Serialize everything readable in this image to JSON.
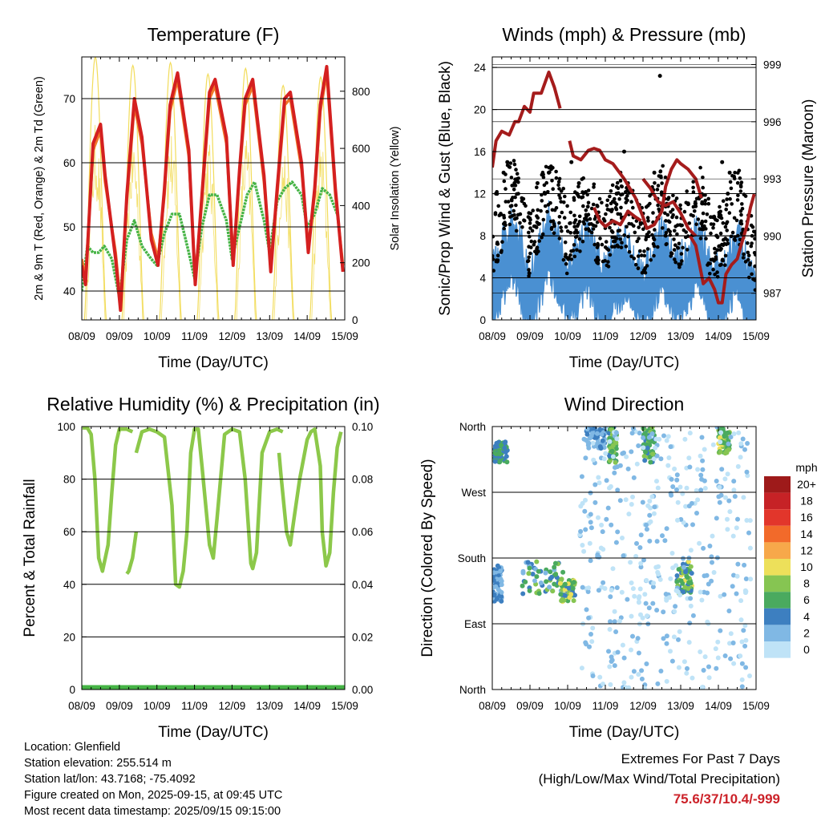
{
  "chart_data": [
    {
      "type": "line",
      "title": "Temperature (F)",
      "xlabel": "Time (Day/UTC)",
      "ylabel": "2m & 9m T (Red, Orange) & 2m Td (Green)",
      "y2label": "Solar Insolation (Yellow)",
      "x_ticks": [
        "08/09",
        "09/09",
        "10/09",
        "11/09",
        "12/09",
        "13/09",
        "14/09",
        "15/09"
      ],
      "ylim": [
        35.5,
        76.5
      ],
      "y_ticks": [
        40,
        50,
        60,
        70
      ],
      "y2lim": [
        0,
        920
      ],
      "y2_ticks": [
        0,
        200,
        400,
        600,
        800
      ],
      "grid": "horizontal",
      "series": [
        {
          "name": "2m T",
          "color": "#d42020",
          "x": [
            0,
            0.1,
            0.3,
            0.5,
            0.62,
            0.9,
            1.03,
            1.2,
            1.4,
            1.6,
            1.85,
            2.03,
            2.2,
            2.35,
            2.55,
            2.85,
            3.02,
            3.2,
            3.4,
            3.55,
            3.85,
            4.03,
            4.2,
            4.35,
            4.55,
            4.85,
            5.03,
            5.2,
            5.4,
            5.55,
            5.85,
            6.03,
            6.2,
            6.35,
            6.52,
            6.75,
            6.95
          ],
          "values": [
            44,
            41,
            63,
            66,
            58,
            45,
            37,
            55,
            70,
            64,
            48,
            44,
            56,
            69,
            74,
            62,
            41,
            55,
            71,
            73,
            64,
            44,
            59,
            70,
            73,
            58,
            43,
            56,
            70,
            71,
            60,
            46,
            56,
            69,
            75,
            56,
            43
          ]
        },
        {
          "name": "9m T",
          "color": "#f07828",
          "x": [
            0,
            0.1,
            0.3,
            0.5,
            0.62,
            0.9,
            1.03,
            1.2,
            1.4,
            1.6,
            1.85,
            2.03,
            2.2,
            2.35,
            2.55,
            2.85,
            3.02,
            3.2,
            3.4,
            3.55,
            3.85,
            4.03,
            4.2,
            4.35,
            4.55,
            4.85,
            5.03,
            5.2,
            5.4,
            5.55,
            5.85,
            6.03,
            6.2,
            6.35,
            6.52,
            6.75,
            6.95
          ],
          "values": [
            45,
            42,
            62,
            65,
            57,
            46,
            38,
            54,
            69,
            63,
            49,
            45,
            55,
            68,
            73,
            61,
            42,
            54,
            70,
            72,
            63,
            45,
            58,
            69,
            72,
            57,
            44,
            55,
            69,
            70,
            59,
            47,
            55,
            68,
            74,
            55,
            44
          ]
        },
        {
          "name": "2m Td",
          "color": "#46b446",
          "x": [
            0,
            0.15,
            0.3,
            0.45,
            0.6,
            0.8,
            1.0,
            1.2,
            1.4,
            1.6,
            1.85,
            2.0,
            2.2,
            2.4,
            2.6,
            2.85,
            3.0,
            3.2,
            3.4,
            3.6,
            3.85,
            4.0,
            4.2,
            4.4,
            4.6,
            4.85,
            5.0,
            5.2,
            5.4,
            5.6,
            5.85,
            6.0,
            6.2,
            6.4,
            6.6,
            6.8
          ],
          "values": [
            40,
            47,
            46,
            46,
            47,
            45,
            39,
            48,
            51,
            47,
            45,
            44,
            49,
            52,
            52,
            46,
            42,
            50,
            55,
            55,
            51,
            45,
            50,
            55,
            57,
            51,
            46,
            54,
            56,
            57,
            55,
            50,
            52,
            56,
            55,
            52
          ]
        },
        {
          "name": "Solar Insolation",
          "color": "#f2dc5a",
          "axis": "y2",
          "days": [
            0,
            1,
            2,
            3,
            4,
            5,
            6
          ],
          "peaks": [
            920,
            890,
            900,
            860,
            880,
            820,
            850
          ]
        }
      ]
    },
    {
      "type": "scatter",
      "title": "Winds (mph) & Pressure (mb)",
      "xlabel": "Time (Day/UTC)",
      "ylabel": "Sonic/Prop Wind & Gust (Blue, Black)",
      "y2label": "Station Pressure (Maroon)",
      "x_ticks": [
        "08/09",
        "09/09",
        "10/09",
        "11/09",
        "12/09",
        "13/09",
        "14/09",
        "15/09"
      ],
      "ylim": [
        0,
        25
      ],
      "y_ticks": [
        0,
        4,
        8,
        12,
        16,
        20,
        24
      ],
      "y2lim": [
        985.6,
        999.4
      ],
      "y2_ticks": [
        987,
        990,
        993,
        996,
        999
      ],
      "grid": "horizontal",
      "series": [
        {
          "name": "Sonic/Prop Wind",
          "color": "#4a90d2",
          "type": "area",
          "x": [
            0,
            0.3,
            0.5,
            0.8,
            1.0,
            1.2,
            1.5,
            1.8,
            2.0,
            2.3,
            2.5,
            2.8,
            3.0,
            3.2,
            3.5,
            3.8,
            4.0,
            4.3,
            4.5,
            4.8,
            5.0,
            5.3,
            5.5,
            5.8,
            6.0,
            6.3,
            6.5,
            6.8,
            7.0
          ],
          "values": [
            3,
            6,
            8,
            5,
            2,
            5,
            8,
            6,
            3,
            5,
            7,
            4,
            3,
            5,
            6,
            4,
            3,
            5,
            7,
            4,
            4,
            6,
            7,
            3,
            3,
            5,
            7,
            3,
            1
          ]
        },
        {
          "name": "Gust",
          "color": "#000000",
          "type": "scatter",
          "x": [
            0.1,
            0.3,
            0.4,
            1.2,
            1.4,
            1.5,
            2.1,
            2.25,
            2.3,
            3.3,
            3.4,
            3.6,
            4.25,
            4.3,
            4.45,
            4.6,
            5.2,
            5.3,
            6.1,
            6.25,
            6.3,
            5.95,
            3.5
          ],
          "values": [
            12,
            14,
            15,
            13,
            12,
            14,
            15,
            12,
            13,
            12,
            14,
            13,
            12,
            14,
            23.2,
            8,
            11,
            8,
            15,
            12,
            14,
            8,
            16
          ]
        },
        {
          "name": "Station Pressure",
          "color": "#a51c1c",
          "axis": "y2",
          "segments": [
            {
              "x": [
                0,
                0.1,
                0.25,
                0.45,
                0.6,
                0.7,
                0.85,
                1.0,
                1.1,
                1.3,
                1.5,
                1.65,
                1.8
              ],
              "values": [
                993.6,
                995.0,
                995.5,
                995.3,
                996.0,
                996.0,
                996.8,
                996.5,
                997.5,
                997.5,
                998.6,
                997.8,
                996.7
              ]
            },
            {
              "x": [
                2.05,
                2.15,
                2.35,
                2.55,
                2.7,
                2.85,
                3.0,
                3.2,
                3.5,
                3.8,
                4.0,
                4.1,
                4.3,
                4.5,
                4.6,
                4.75,
                4.9,
                5.0,
                5.2,
                5.4,
                5.55
              ],
              "values": [
                995.0,
                994.2,
                994.0,
                994.5,
                994.6,
                994.5,
                994.0,
                993.8,
                993.0,
                992.0,
                991.0,
                990.4,
                990.6,
                991.3,
                992.6,
                993.5,
                994.0,
                993.8,
                993.5,
                993.0,
                992.0
              ]
            },
            {
              "x": [
                2.7,
                2.85,
                3.0,
                3.2,
                3.4,
                3.6,
                3.8,
                3.95
              ],
              "values": [
                991.5,
                990.8,
                990.5,
                990.8,
                990.6,
                991.3,
                991.0,
                990.8
              ]
            },
            {
              "x": [
                4.0,
                4.2,
                4.4,
                4.6,
                4.8,
                5.0,
                5.2,
                5.4
              ],
              "values": [
                993.0,
                992.5,
                991.8,
                991.6,
                991.8,
                991.2,
                990.4,
                990.0
              ]
            },
            {
              "x": [
                5.25,
                5.4,
                5.5,
                5.6,
                5.75,
                5.9,
                6.0,
                6.1,
                6.2,
                6.35,
                6.5,
                6.6,
                6.75,
                6.85,
                6.95
              ],
              "values": [
                990.0,
                989.5,
                988.5,
                987.5,
                987.8,
                987.2,
                986.5,
                986.5,
                988.0,
                988.5,
                988.8,
                989.5,
                990.5,
                991.5,
                992.2
              ]
            }
          ]
        }
      ]
    },
    {
      "type": "line",
      "title": "Relative Humidity (%) & Precipitation (in)",
      "xlabel": "Time (Day/UTC)",
      "ylabel": "Percent & Total Rainfall",
      "x_ticks": [
        "08/09",
        "09/09",
        "10/09",
        "11/09",
        "12/09",
        "13/09",
        "14/09",
        "15/09"
      ],
      "ylim": [
        0,
        100
      ],
      "y_ticks": [
        0,
        20,
        40,
        60,
        80,
        100
      ],
      "y2lim": [
        0,
        0.1
      ],
      "y2_ticks": [
        "0.00",
        "0.02",
        "0.04",
        "0.06",
        "0.08",
        "0.10"
      ],
      "grid": "horizontal",
      "series": [
        {
          "name": "Relative Humidity",
          "color": "#8cc84a",
          "segments": [
            {
              "x": [
                0.02,
                0.15,
                0.25,
                0.35,
                0.45,
                0.55,
                0.7,
                0.8,
                0.9,
                1.0,
                1.2,
                1.35
              ],
              "values": [
                99.5,
                99.5,
                97,
                80,
                50,
                45,
                55,
                75,
                93,
                99,
                99,
                98
              ]
            },
            {
              "x": [
                1.2,
                1.25,
                1.35,
                1.45
              ],
              "values": [
                44,
                45,
                50,
                60
              ]
            },
            {
              "x": [
                1.45,
                1.6,
                1.8,
                2.0,
                2.2,
                2.4,
                2.5,
                2.6,
                2.7,
                2.8,
                2.9,
                3.0,
                3.1,
                3.2,
                3.4,
                3.5,
                3.6,
                3.8,
                4.0,
                4.2,
                4.35,
                4.5,
                4.55,
                4.65,
                4.8,
                5.0,
                5.2,
                5.35
              ],
              "values": [
                90,
                98,
                99,
                98,
                96,
                70,
                40,
                39,
                45,
                60,
                90,
                99,
                99,
                85,
                55,
                50,
                65,
                97,
                99,
                98,
                80,
                48,
                46,
                52,
                90,
                98,
                99,
                98
              ]
            },
            {
              "x": [
                5.25,
                5.3,
                5.45,
                5.55,
                5.65,
                5.8,
                6.0,
                6.1,
                6.2,
                6.35,
                6.4,
                6.5,
                6.6,
                6.7,
                6.8,
                6.9
              ],
              "values": [
                90,
                82,
                60,
                55,
                65,
                80,
                95,
                98,
                99,
                85,
                60,
                47,
                52,
                75,
                92,
                98
              ]
            }
          ]
        },
        {
          "name": "Total Rainfall",
          "color": "#46b446",
          "values": [
            0,
            0,
            0,
            0,
            0,
            0,
            0,
            0
          ]
        }
      ]
    },
    {
      "type": "scatter",
      "title": "Wind Direction",
      "xlabel": "Time (Day/UTC)",
      "ylabel": "Direction (Colored By Speed)",
      "x_ticks": [
        "08/09",
        "09/09",
        "10/09",
        "11/09",
        "12/09",
        "13/09",
        "14/09",
        "15/09"
      ],
      "y_ticks": [
        "North",
        "East",
        "South",
        "West",
        "North"
      ],
      "ylim": [
        0,
        360
      ],
      "grid": "horizontal",
      "colorbar": {
        "title": "mph",
        "labels": [
          "20+",
          "18",
          "16",
          "14",
          "12",
          "10",
          "8",
          "6",
          "4",
          "2",
          "0"
        ],
        "colors": [
          "#9e1a1a",
          "#c62226",
          "#e2362b",
          "#f26a2a",
          "#f7a84a",
          "#ede05a",
          "#86c552",
          "#4aaa5f",
          "#3d7fc0",
          "#80b8e4",
          "#bfe3f7"
        ]
      },
      "clusters": [
        {
          "x": [
            0.05,
            0.4
          ],
          "dir": [
            310,
            340
          ],
          "speed": [
            4,
            8
          ]
        },
        {
          "x": [
            0.0,
            0.25
          ],
          "dir": [
            120,
            170
          ],
          "speed": [
            2,
            6
          ]
        },
        {
          "x": [
            0.8,
            1.9
          ],
          "dir": [
            130,
            175
          ],
          "speed": [
            3,
            9
          ]
        },
        {
          "x": [
            1.8,
            2.2
          ],
          "dir": [
            120,
            150
          ],
          "speed": [
            5,
            11
          ]
        },
        {
          "x": [
            2.5,
            3.0
          ],
          "dir": [
            330,
            360
          ],
          "speed": [
            2,
            6
          ]
        },
        {
          "x": [
            3.1,
            3.3
          ],
          "dir": [
            310,
            360
          ],
          "speed": [
            5,
            10
          ]
        },
        {
          "x": [
            4.0,
            4.3
          ],
          "dir": [
            310,
            360
          ],
          "speed": [
            4,
            9
          ]
        },
        {
          "x": [
            4.9,
            5.3
          ],
          "dir": [
            130,
            175
          ],
          "speed": [
            4,
            11
          ]
        },
        {
          "x": [
            6.0,
            6.3
          ],
          "dir": [
            320,
            360
          ],
          "speed": [
            6,
            11
          ]
        },
        {
          "x": [
            2.3,
            6.9
          ],
          "dir": [
            0,
            360
          ],
          "speed": [
            0,
            4
          ]
        }
      ]
    }
  ],
  "info": {
    "location": "Location: Glenfield",
    "elevation": "Station elevation: 255.514 m",
    "latlon": "Station lat/lon: 43.7168; -75.4092",
    "created": "Figure created on Mon, 2025-09-15, at 09:45 UTC",
    "recent": "Most recent data timestamp: 2025/09/15 09:15:00"
  },
  "extremes": {
    "title": "Extremes For Past 7 Days",
    "subtitle": "(High/Low/Max Wind/Total Precipitation)",
    "value": "75.6/37/10.4/-999"
  }
}
